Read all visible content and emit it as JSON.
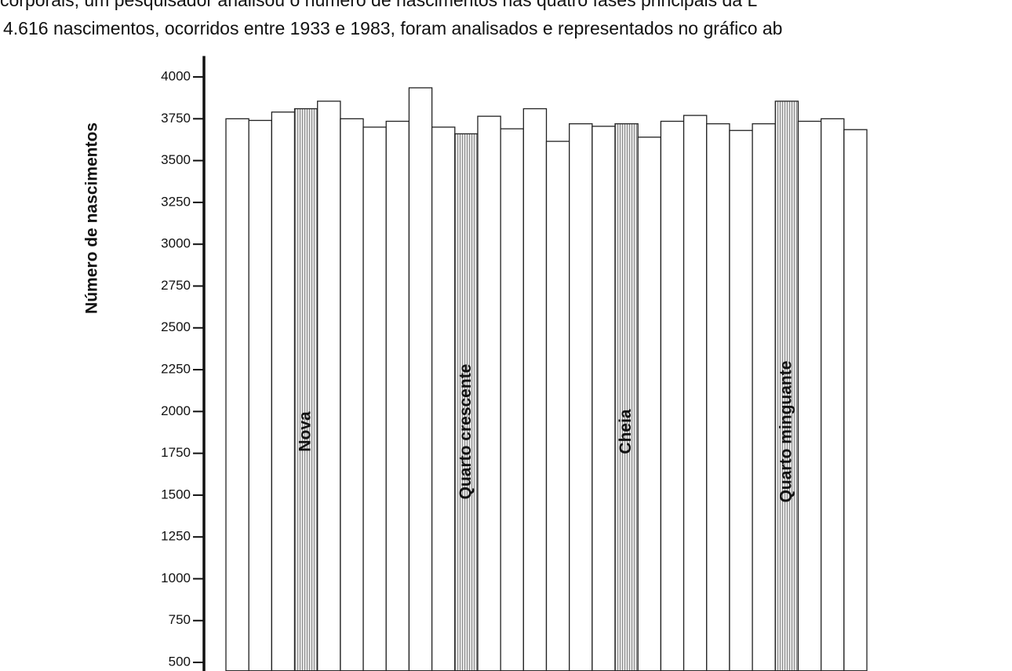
{
  "context": [
    "corporais, um pesquisador analisou o número de nascimentos nas quatro fases principais da L",
    "4.616 nascimentos, ocorridos entre 1933 e 1983, foram analisados e representados no gráfico ab"
  ],
  "chart_data": {
    "type": "bar",
    "y_label": "Número de nascimentos",
    "categories": [
      null,
      null,
      null,
      "Nova",
      null,
      null,
      null,
      null,
      null,
      null,
      "Quarto crescente",
      null,
      null,
      null,
      null,
      null,
      null,
      "Cheia",
      null,
      null,
      null,
      null,
      null,
      null,
      "Quarto minguante",
      null,
      null,
      null
    ],
    "values": [
      3750,
      3740,
      3790,
      3810,
      3855,
      3750,
      3700,
      3735,
      3935,
      3700,
      3660,
      3765,
      3690,
      3810,
      3615,
      3720,
      3705,
      3720,
      3640,
      3735,
      3770,
      3720,
      3680,
      3720,
      3855,
      3735,
      3750,
      3685
    ],
    "color": "#ffffff",
    "highlight_color": "#b8b8b8",
    "ylim": [
      450,
      4125
    ],
    "yticks": [
      500,
      750,
      1000,
      1250,
      1500,
      1750,
      2000,
      2250,
      2500,
      2750,
      3000,
      3250,
      3500,
      3750,
      4000
    ],
    "grid": false
  }
}
